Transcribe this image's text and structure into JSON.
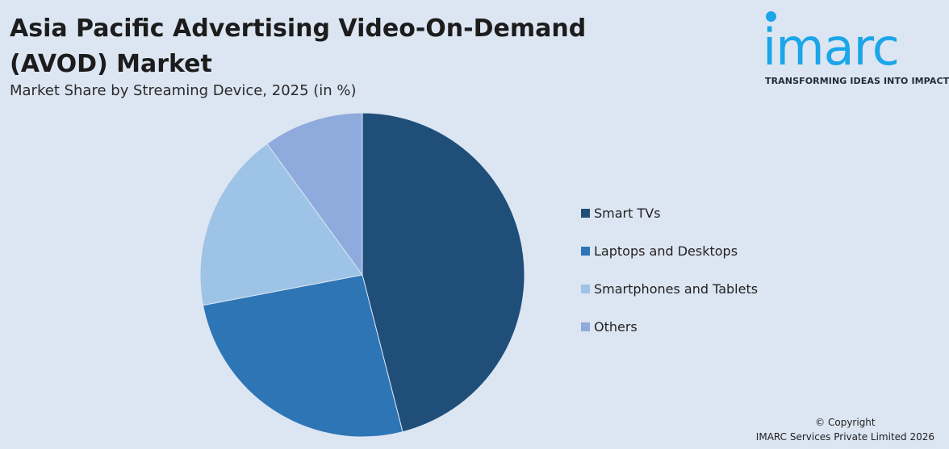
{
  "header": {
    "title": "Asia Pacific Advertising Video-On-Demand (AVOD) Market",
    "subtitle": "Market Share by Streaming Device, 2025 (in %)"
  },
  "logo": {
    "wordmark": "imarc",
    "tagline": "TRANSFORMING IDEAS INTO IMPACT",
    "color": "#1aa6e8"
  },
  "chart_data": {
    "type": "pie",
    "title": "Asia Pacific Advertising Video-On-Demand (AVOD) Market",
    "subtitle": "Market Share by Streaming Device, 2025 (in %)",
    "categories": [
      "Smart TVs",
      "Laptops and Desktops",
      "Smartphones and Tablets",
      "Others"
    ],
    "values": [
      46,
      26,
      18,
      10
    ],
    "colors": [
      "#1f4e79",
      "#2e75b6",
      "#9dc3e6",
      "#8faadc"
    ],
    "start_angle": "12 o'clock",
    "direction": "clockwise",
    "legend_position": "right"
  },
  "footer": {
    "copyright_line1": "© Copyright",
    "copyright_line2": "IMARC Services Private Limited 2026"
  }
}
